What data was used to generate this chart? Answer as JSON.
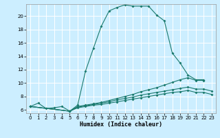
{
  "xlabel": "Humidex (Indice chaleur)",
  "bg_color": "#cceeff",
  "grid_color": "#ffffff",
  "line_color": "#1a7a6e",
  "xlim": [
    -0.5,
    23.5
  ],
  "ylim": [
    5.5,
    21.8
  ],
  "xticks": [
    0,
    1,
    2,
    3,
    4,
    5,
    6,
    7,
    8,
    9,
    10,
    11,
    12,
    13,
    14,
    15,
    16,
    17,
    18,
    19,
    20,
    21,
    22,
    23
  ],
  "yticks": [
    6,
    8,
    10,
    12,
    14,
    16,
    18,
    20
  ],
  "series": [
    {
      "x": [
        0,
        1,
        2,
        3,
        4,
        5,
        6,
        7,
        8,
        9,
        10,
        11,
        12,
        13,
        14,
        15,
        16,
        17,
        18,
        19,
        20,
        21,
        22
      ],
      "y": [
        6.5,
        7.0,
        6.2,
        6.3,
        6.5,
        5.8,
        6.7,
        11.8,
        15.2,
        18.5,
        20.8,
        21.3,
        21.7,
        21.5,
        21.5,
        21.5,
        20.2,
        19.3,
        14.5,
        13.0,
        11.2,
        10.5,
        10.5
      ]
    },
    {
      "x": [
        0,
        5,
        6,
        7,
        8,
        9,
        10,
        11,
        12,
        13,
        14,
        15,
        16,
        17,
        18,
        19,
        20,
        21,
        22
      ],
      "y": [
        6.5,
        5.8,
        6.5,
        6.7,
        6.9,
        7.1,
        7.4,
        7.7,
        8.0,
        8.3,
        8.7,
        9.0,
        9.3,
        9.7,
        10.1,
        10.5,
        10.8,
        10.4,
        10.4
      ]
    },
    {
      "x": [
        0,
        5,
        6,
        7,
        8,
        9,
        10,
        11,
        12,
        13,
        14,
        15,
        16,
        17,
        18,
        19,
        20,
        21,
        22,
        23
      ],
      "y": [
        6.5,
        5.8,
        6.4,
        6.6,
        6.8,
        7.0,
        7.2,
        7.5,
        7.7,
        7.9,
        8.2,
        8.4,
        8.6,
        8.8,
        9.0,
        9.2,
        9.4,
        9.1,
        9.1,
        8.8
      ]
    },
    {
      "x": [
        0,
        5,
        6,
        7,
        8,
        9,
        10,
        11,
        12,
        13,
        14,
        15,
        16,
        17,
        18,
        19,
        20,
        21,
        22,
        23
      ],
      "y": [
        6.5,
        5.8,
        6.3,
        6.5,
        6.7,
        6.8,
        7.0,
        7.2,
        7.4,
        7.6,
        7.8,
        8.0,
        8.2,
        8.4,
        8.6,
        8.7,
        8.9,
        8.6,
        8.6,
        8.3
      ]
    }
  ]
}
